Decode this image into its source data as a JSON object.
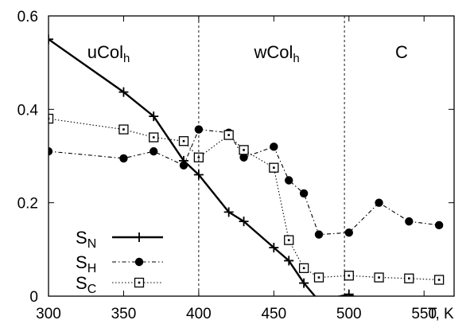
{
  "chart_data": {
    "type": "line",
    "xlim": [
      300,
      570
    ],
    "ylim": [
      0,
      0.6
    ],
    "x_ticks": [
      "300",
      "350",
      "400",
      "450",
      "500",
      "550"
    ],
    "x_tick_values": [
      300,
      350,
      400,
      450,
      500,
      550
    ],
    "y_ticks": [
      "0",
      "0.2",
      "0.4",
      "0.6"
    ],
    "y_tick_values": [
      0,
      0.2,
      0.4,
      0.6
    ],
    "xlabel": "T, K",
    "ylabel": "",
    "grid": false,
    "legend_position": "bottom-left",
    "phase_boundaries": [
      400,
      497
    ],
    "regions": [
      {
        "label": "uCol",
        "sub": "h",
        "x_center": 340
      },
      {
        "label": "wCol",
        "sub": "h",
        "x_center": 452
      },
      {
        "label": "C",
        "sub": "",
        "x_center": 535
      }
    ],
    "series": [
      {
        "name": "S",
        "sub": "N",
        "style": "solid",
        "marker": "plus",
        "points": [
          [
            300,
            0.55
          ],
          [
            350,
            0.437
          ],
          [
            370,
            0.385
          ],
          [
            390,
            0.29
          ],
          [
            400,
            0.26
          ],
          [
            420,
            0.18
          ],
          [
            430,
            0.16
          ],
          [
            450,
            0.104
          ],
          [
            460,
            0.076
          ],
          [
            470,
            0.028
          ],
          [
            480,
            -0.01
          ],
          [
            500,
            0.004
          ],
          [
            510,
            -0.01
          ]
        ]
      },
      {
        "name": "S",
        "sub": "H",
        "style": "dashdot",
        "marker": "filled-circle",
        "points": [
          [
            300,
            0.31
          ],
          [
            350,
            0.295
          ],
          [
            370,
            0.31
          ],
          [
            390,
            0.28
          ],
          [
            400,
            0.357
          ],
          [
            420,
            0.35
          ],
          [
            430,
            0.297
          ],
          [
            450,
            0.32
          ],
          [
            460,
            0.248
          ],
          [
            470,
            0.22
          ],
          [
            480,
            0.132
          ],
          [
            500,
            0.136
          ],
          [
            520,
            0.2
          ],
          [
            540,
            0.16
          ],
          [
            560,
            0.152
          ]
        ]
      },
      {
        "name": "S",
        "sub": "C",
        "style": "dotted",
        "marker": "open-square",
        "points": [
          [
            300,
            0.38
          ],
          [
            350,
            0.357
          ],
          [
            370,
            0.34
          ],
          [
            390,
            0.332
          ],
          [
            400,
            0.297
          ],
          [
            420,
            0.345
          ],
          [
            430,
            0.313
          ],
          [
            450,
            0.275
          ],
          [
            460,
            0.12
          ],
          [
            470,
            0.06
          ],
          [
            480,
            0.04
          ],
          [
            500,
            0.044
          ],
          [
            520,
            0.04
          ],
          [
            540,
            0.038
          ],
          [
            560,
            0.035
          ]
        ]
      }
    ]
  }
}
